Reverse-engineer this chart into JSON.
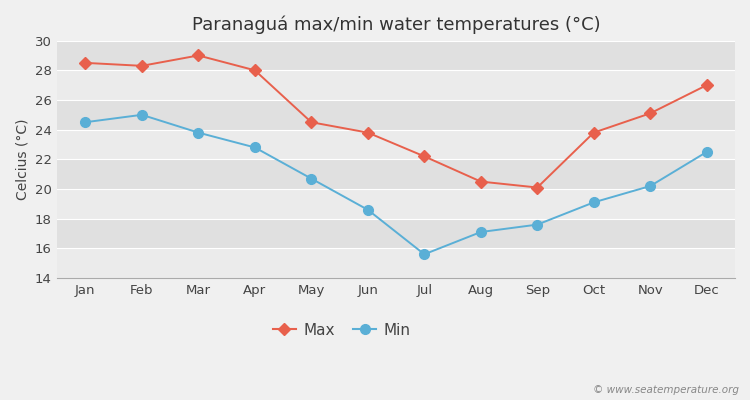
{
  "title": "Paranaguá max/min water temperatures (°C)",
  "ylabel": "Celcius (°C)",
  "months": [
    "Jan",
    "Feb",
    "Mar",
    "Apr",
    "May",
    "Jun",
    "Jul",
    "Aug",
    "Sep",
    "Oct",
    "Nov",
    "Dec"
  ],
  "max_temps": [
    28.5,
    28.3,
    29.0,
    28.0,
    24.5,
    23.8,
    22.2,
    20.5,
    20.1,
    23.8,
    25.1,
    27.0
  ],
  "min_temps": [
    24.5,
    25.0,
    23.8,
    22.8,
    20.7,
    18.6,
    15.6,
    17.1,
    17.6,
    19.1,
    20.2,
    22.5
  ],
  "max_color": "#e8604c",
  "min_color": "#5aafd6",
  "ylim": [
    14,
    30
  ],
  "yticks": [
    14,
    16,
    18,
    20,
    22,
    24,
    26,
    28,
    30
  ],
  "band_colors": [
    "#ebebeb",
    "#e0e0e0"
  ],
  "legend_label_max": "Max",
  "legend_label_min": "Min",
  "watermark": "© www.seatemperature.org",
  "title_fontsize": 13,
  "axis_fontsize": 10,
  "tick_fontsize": 9.5
}
